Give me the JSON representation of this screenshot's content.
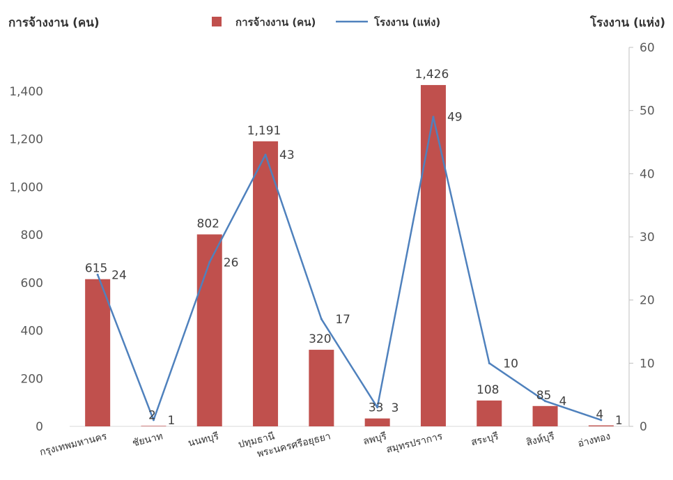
{
  "chart_data": {
    "type": "bar",
    "title": "",
    "y_left_label": "การจ้างงาน (คน)",
    "y_right_label": "โรงงาน (แห่ง)",
    "categories": [
      "กรุงเทพมหานคร",
      "ชัยนาท",
      "นนทบุรี",
      "ปทุมธานี",
      "พระนครศรีอยุธยา",
      "ลพบุรี",
      "สมุทรปราการ",
      "สระบุรี",
      "สิงห์บุรี",
      "อ่างทอง"
    ],
    "series": [
      {
        "name": "การจ้างงาน (คน)",
        "type": "bar",
        "axis": "left",
        "color": "#C0504D",
        "values": [
          615,
          2,
          802,
          1191,
          320,
          33,
          1426,
          108,
          85,
          4
        ],
        "labels": [
          "615",
          "2",
          "802",
          "1,191",
          "320",
          "33",
          "1,426",
          "108",
          "85",
          "4"
        ]
      },
      {
        "name": "โรงงาน (แห่ง)",
        "type": "line",
        "axis": "right",
        "color": "#4F81BD",
        "values": [
          24,
          1,
          26,
          43,
          17,
          3,
          49,
          10,
          4,
          1
        ],
        "labels": [
          "24",
          "1",
          "26",
          "43",
          "17",
          "3",
          "49",
          "10",
          "4",
          "1"
        ]
      }
    ],
    "y_left": {
      "min": 0,
      "max": 1500,
      "ticks": [
        0,
        200,
        400,
        600,
        800,
        1000,
        1200,
        1400
      ],
      "tick_labels": [
        "0",
        "200",
        "400",
        "600",
        "800",
        "1,000",
        "1,200",
        "1,400"
      ]
    },
    "y_right": {
      "min": 0,
      "max": 60,
      "ticks": [
        0,
        10,
        20,
        30,
        40,
        50,
        60
      ],
      "tick_labels": [
        "0",
        "10",
        "20",
        "30",
        "40",
        "50",
        "60"
      ]
    },
    "legend_position": "top-center",
    "grid": false
  }
}
